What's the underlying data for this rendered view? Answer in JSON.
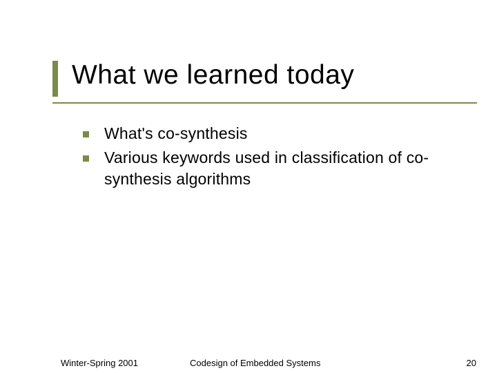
{
  "slide": {
    "title": "What we learned today",
    "bullets": [
      "What's co-synthesis",
      "Various keywords used in classification of co-synthesis algorithms"
    ],
    "footer": {
      "left": "Winter-Spring 2001",
      "center": "Codesign of Embedded Systems",
      "page": "20"
    },
    "colors": {
      "accent": "#7b8a4a",
      "text": "#000000",
      "background": "#ffffff"
    },
    "typography": {
      "title_fontsize": 39,
      "body_fontsize": 23,
      "footer_fontsize": 13,
      "font_family": "Verdana"
    },
    "layout": {
      "accent_bar_width": 8,
      "accent_bar_height": 52,
      "underline_width": 615,
      "bullet_size": 9
    }
  }
}
